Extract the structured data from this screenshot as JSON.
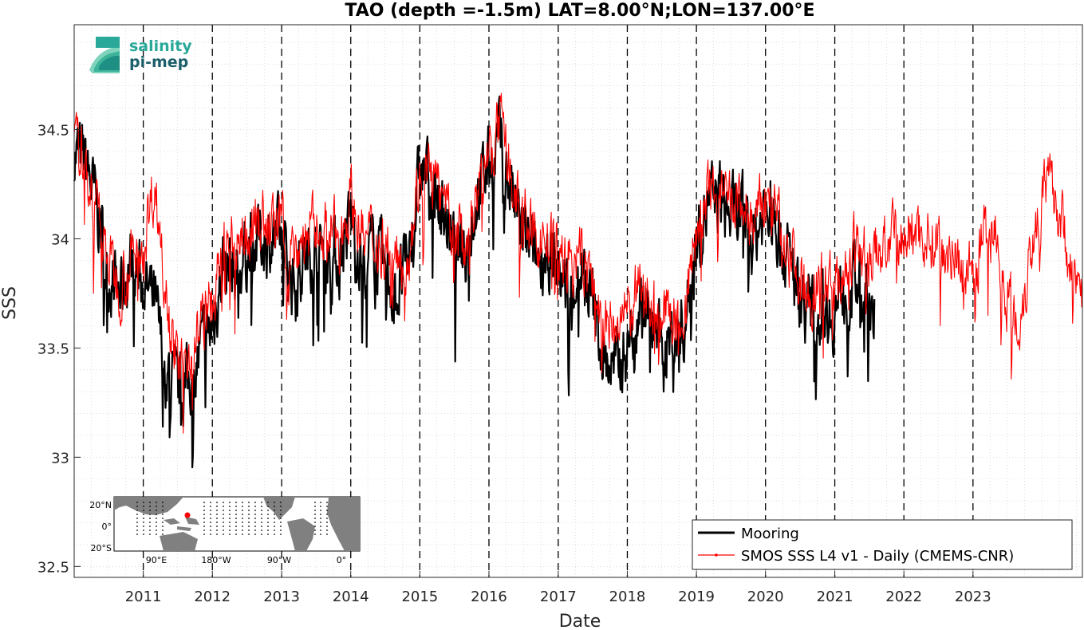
{
  "chart_data": {
    "type": "line",
    "title": "TAO (depth =-1.5m) LAT=8.00°N;LON=137.00°E",
    "xlabel": "Date",
    "ylabel": "SSS",
    "xlim": [
      "2010-01-01",
      "2024-08-01"
    ],
    "ylim": [
      32.45,
      34.98
    ],
    "x_ticks": [
      "2011",
      "2012",
      "2013",
      "2014",
      "2015",
      "2016",
      "2017",
      "2018",
      "2019",
      "2020",
      "2021",
      "2022",
      "2023"
    ],
    "y_ticks": [
      "32.5",
      "33",
      "33.5",
      "34",
      "34.5"
    ],
    "y_tick_values": [
      32.5,
      33.0,
      33.5,
      34.0,
      34.5
    ],
    "grid": true,
    "dashed_year_markers": true,
    "legend_position": "bottom-right",
    "series": [
      {
        "name": "Mooring",
        "color": "#000000",
        "x": [
          "2010-01",
          "2010-03",
          "2010-05",
          "2010-07",
          "2010-09",
          "2010-11",
          "2011-01",
          "2011-03",
          "2011-05",
          "2011-07",
          "2011-09",
          "2011-11",
          "2012-01",
          "2012-03",
          "2012-05",
          "2012-07",
          "2012-09",
          "2012-11",
          "2013-01",
          "2013-03",
          "2013-05",
          "2013-07",
          "2013-09",
          "2013-11",
          "2014-01",
          "2014-03",
          "2014-05",
          "2014-07",
          "2014-09",
          "2014-11",
          "2015-01",
          "2015-03",
          "2015-05",
          "2015-07",
          "2015-09",
          "2015-11",
          "2016-01",
          "2016-03",
          "2016-05",
          "2016-07",
          "2016-09",
          "2016-11",
          "2017-01",
          "2017-03",
          "2017-05",
          "2017-07",
          "2017-09",
          "2017-11",
          "2018-01",
          "2018-03",
          "2018-05",
          "2018-07",
          "2018-09",
          "2018-11",
          "2019-01",
          "2019-03",
          "2019-05",
          "2019-07",
          "2019-09",
          "2019-11",
          "2020-01",
          "2020-03",
          "2020-05",
          "2020-07",
          "2020-09",
          "2020-11",
          "2021-01",
          "2021-03",
          "2021-05",
          "2021-07"
        ],
        "values": [
          34.4,
          34.35,
          34.15,
          33.85,
          33.75,
          33.9,
          33.8,
          33.7,
          33.4,
          33.3,
          33.35,
          33.5,
          33.6,
          33.9,
          33.85,
          33.95,
          34.0,
          34.0,
          34.0,
          33.8,
          33.9,
          34.0,
          33.95,
          33.9,
          34.1,
          33.9,
          33.95,
          33.85,
          33.75,
          33.9,
          34.3,
          34.3,
          34.15,
          33.95,
          33.95,
          34.2,
          34.35,
          34.45,
          34.2,
          34.0,
          33.9,
          33.95,
          33.85,
          33.75,
          33.9,
          33.7,
          33.45,
          33.4,
          33.5,
          33.7,
          33.65,
          33.5,
          33.55,
          33.6,
          34.0,
          34.15,
          34.2,
          34.1,
          34.1,
          34.0,
          34.15,
          34.05,
          33.9,
          33.75,
          33.65,
          33.7,
          33.65,
          33.8,
          33.8,
          33.7
        ]
      },
      {
        "name": "SMOS SSS L4 v1 - Daily (CMEMS-CNR)",
        "color": "#ff0000",
        "x": [
          "2010-01",
          "2010-03",
          "2010-05",
          "2010-07",
          "2010-09",
          "2010-11",
          "2011-01",
          "2011-03",
          "2011-05",
          "2011-07",
          "2011-09",
          "2011-11",
          "2012-01",
          "2012-03",
          "2012-05",
          "2012-07",
          "2012-09",
          "2012-11",
          "2013-01",
          "2013-03",
          "2013-05",
          "2013-07",
          "2013-09",
          "2013-11",
          "2014-01",
          "2014-03",
          "2014-05",
          "2014-07",
          "2014-09",
          "2014-11",
          "2015-01",
          "2015-03",
          "2015-05",
          "2015-07",
          "2015-09",
          "2015-11",
          "2016-01",
          "2016-03",
          "2016-05",
          "2016-07",
          "2016-09",
          "2016-11",
          "2017-01",
          "2017-03",
          "2017-05",
          "2017-07",
          "2017-09",
          "2017-11",
          "2018-01",
          "2018-03",
          "2018-05",
          "2018-07",
          "2018-09",
          "2018-11",
          "2019-01",
          "2019-03",
          "2019-05",
          "2019-07",
          "2019-09",
          "2019-11",
          "2020-01",
          "2020-03",
          "2020-05",
          "2020-07",
          "2020-09",
          "2020-11",
          "2021-01",
          "2021-03",
          "2021-05",
          "2021-07",
          "2021-09",
          "2021-11",
          "2022-01",
          "2022-03",
          "2022-05",
          "2022-07",
          "2022-09",
          "2022-11",
          "2023-01",
          "2023-03",
          "2023-05",
          "2023-07",
          "2023-09",
          "2023-11",
          "2024-01",
          "2024-03",
          "2024-05",
          "2024-07"
        ],
        "values": [
          34.4,
          34.35,
          34.15,
          33.9,
          33.8,
          33.9,
          34.0,
          34.25,
          33.8,
          33.4,
          33.5,
          33.6,
          33.7,
          33.95,
          34.0,
          34.05,
          34.1,
          34.05,
          34.05,
          33.95,
          34.0,
          34.05,
          34.05,
          34.0,
          34.2,
          34.0,
          34.0,
          34.0,
          33.9,
          33.95,
          34.3,
          34.3,
          34.15,
          34.0,
          34.0,
          34.25,
          34.4,
          34.5,
          34.25,
          34.1,
          34.0,
          34.0,
          33.95,
          33.9,
          33.9,
          33.8,
          33.6,
          33.6,
          33.65,
          33.75,
          33.75,
          33.65,
          33.65,
          33.65,
          34.05,
          34.2,
          34.2,
          34.15,
          34.15,
          34.05,
          34.2,
          34.1,
          33.95,
          33.85,
          33.75,
          33.85,
          33.75,
          33.9,
          33.95,
          33.9,
          33.95,
          34.0,
          34.0,
          34.05,
          34.0,
          34.0,
          33.95,
          33.9,
          33.85,
          34.0,
          34.05,
          33.75,
          33.6,
          33.95,
          34.2,
          34.25,
          34.0,
          33.8
        ]
      }
    ]
  },
  "logo": {
    "line1": "salinity",
    "line2": "pi-mep"
  },
  "inset_map": {
    "lat_labels": [
      "20°N",
      "0°",
      "20°S"
    ],
    "lon_labels": [
      "90°E",
      "180°W",
      "90°W",
      "0°"
    ]
  }
}
